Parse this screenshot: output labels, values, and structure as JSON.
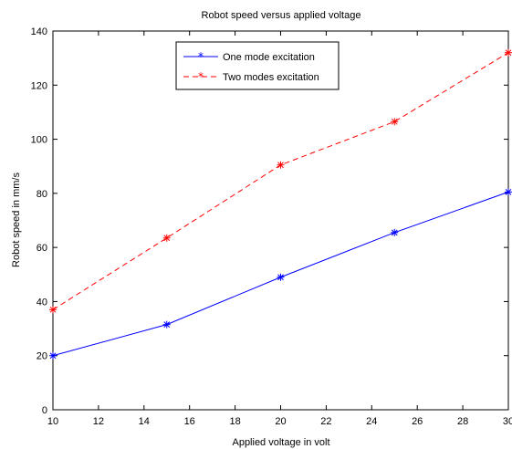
{
  "chart_data": {
    "type": "line",
    "title": "Robot speed versus applied voltage",
    "xlabel": "Applied voltage in volt",
    "ylabel": "Robot speed in mm/s",
    "xlim": [
      10,
      30
    ],
    "ylim": [
      0,
      140
    ],
    "xticks": [
      10,
      12,
      14,
      16,
      18,
      20,
      22,
      24,
      26,
      28,
      30
    ],
    "yticks": [
      0,
      20,
      40,
      60,
      80,
      100,
      120,
      140
    ],
    "grid": false,
    "legend_position": "top-center",
    "x": [
      10,
      15,
      20,
      25,
      30
    ],
    "series": [
      {
        "name": "One mode excitation",
        "values": [
          20,
          31.5,
          49,
          65.5,
          80.5
        ],
        "color": "#0000ff",
        "line_style": "solid",
        "marker": "*"
      },
      {
        "name": "Two modes excitation",
        "values": [
          37,
          63.5,
          90.5,
          106.5,
          132
        ],
        "color": "#ff0000",
        "line_style": "dashed",
        "marker": "*"
      }
    ]
  }
}
